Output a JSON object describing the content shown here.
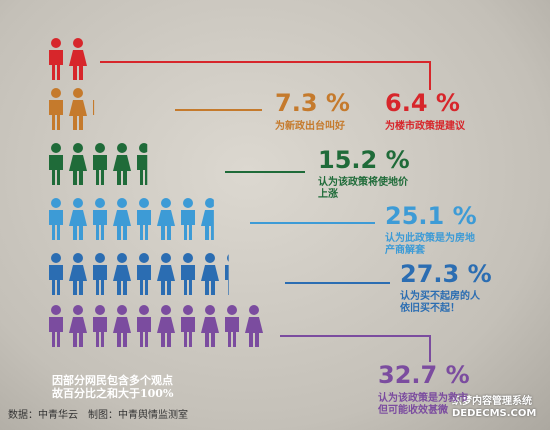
{
  "chart_data": {
    "type": "pictogram",
    "categories": [
      "为楼市政策提建议",
      "为新政出台叫好",
      "认为该政策将使地价\n上涨",
      "认为此政策是为房地\n产商解套",
      "认为买不起房的人\n依旧买不起！",
      "认为该政策是为救市\n但可能收效甚微"
    ],
    "values": [
      6.4,
      7.3,
      15.2,
      25.1,
      27.3,
      32.7
    ],
    "value_labels": [
      "6.4 %",
      "7.3 %",
      "15.2 %",
      "25.1 %",
      "27.3 %",
      "32.7 %"
    ],
    "colors": [
      "#d7262b",
      "#c57a2c",
      "#1f6b39",
      "#3d9bd6",
      "#2b6db2",
      "#7b4c9f"
    ],
    "note": "因部分网民包含多个观点\n故百分比之和大于100%",
    "source": "数据：中青华云　制图：中青舆情监测室",
    "watermark": "织梦内容管理系统\nDEDECMS.COM"
  }
}
